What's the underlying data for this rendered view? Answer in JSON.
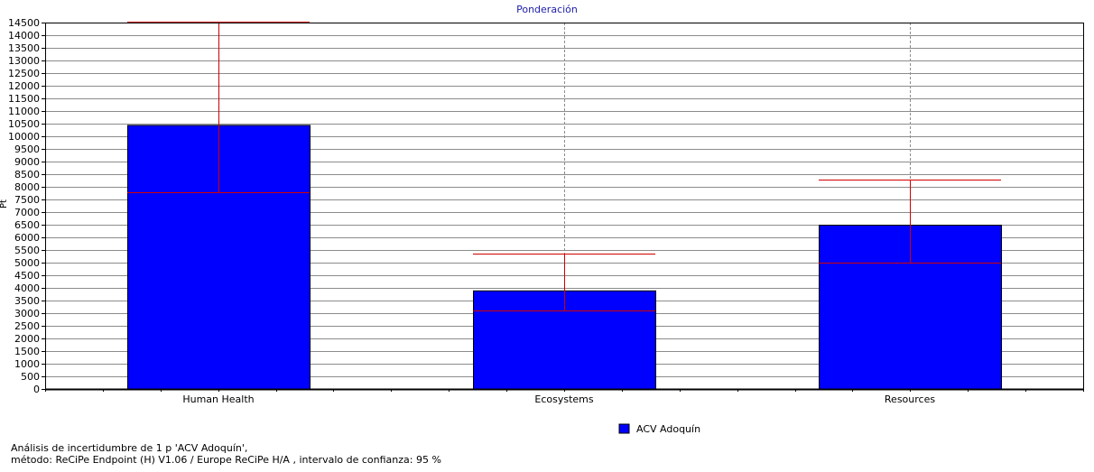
{
  "chart_data": {
    "type": "bar",
    "title": "Ponderación",
    "ylabel": "Pt",
    "xlabel": "",
    "categories": [
      "Human Health",
      "Ecosystems",
      "Resources"
    ],
    "series": [
      {
        "name": "ACV Adoquín",
        "color": "#0000ff",
        "values": [
          10450,
          3900,
          6500
        ],
        "error_low": [
          7800,
          3100,
          5000
        ],
        "error_high": [
          14550,
          5350,
          8300
        ]
      }
    ],
    "ylim": [
      0,
      14500
    ],
    "yticks": [
      0,
      500,
      1000,
      1500,
      2000,
      2500,
      3000,
      3500,
      4000,
      4500,
      5000,
      5500,
      6000,
      6500,
      7000,
      7500,
      8000,
      8500,
      9000,
      9500,
      10000,
      10500,
      11000,
      11500,
      12000,
      12500,
      13000,
      13500,
      14000,
      14500
    ],
    "grid": true,
    "legend_position": "bottom-center",
    "error_color": "#d00000"
  },
  "footer": {
    "line1": "Análisis de incertidumbre de  1 p 'ACV Adoquín',",
    "line2": "método: ReCiPe Endpoint (H) V1.06 / Europe ReCiPe H/A , intervalo de confianza: 95 %"
  }
}
